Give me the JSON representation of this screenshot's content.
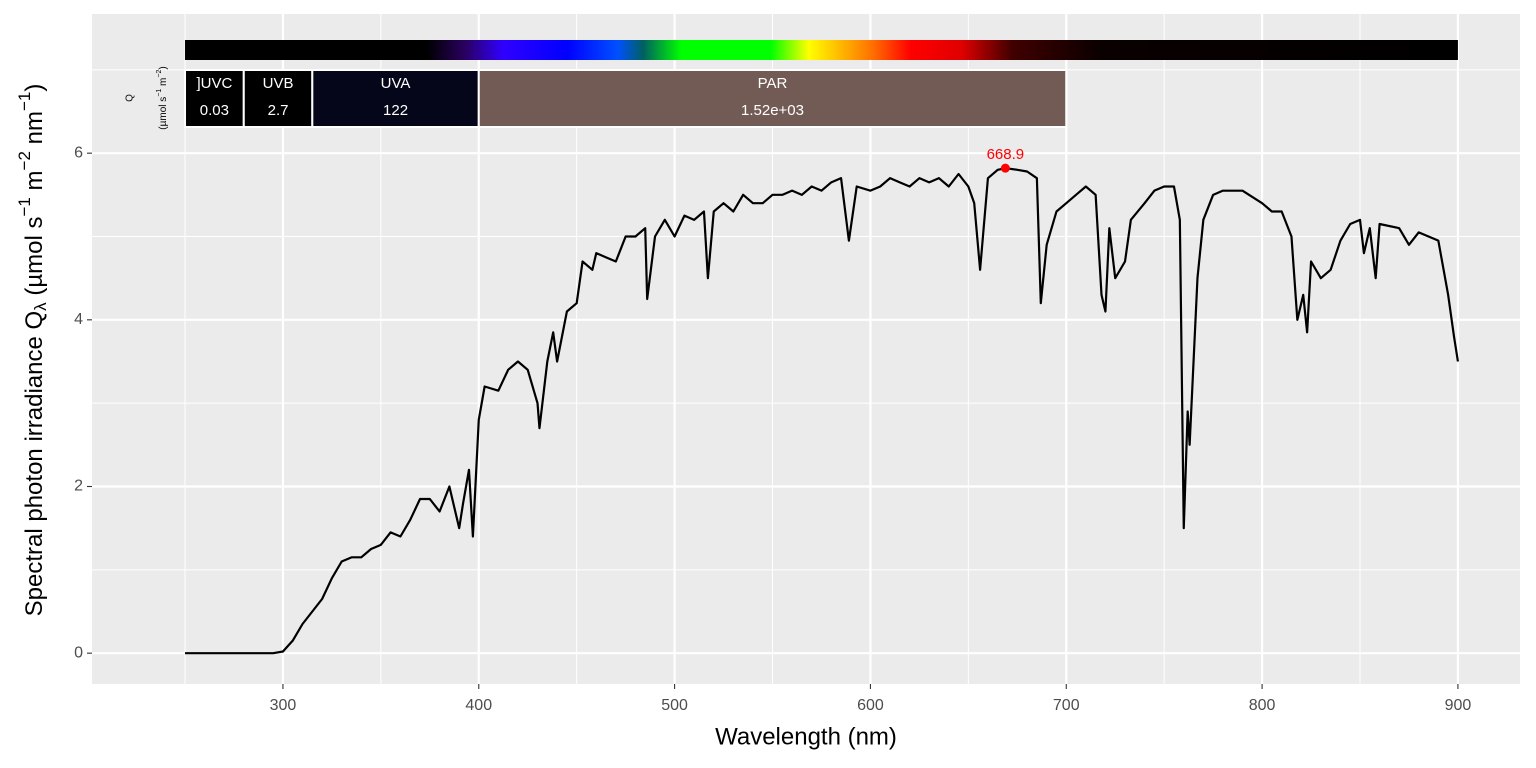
{
  "chart_data": {
    "type": "line",
    "xlabel": "Wavelength (nm)",
    "ylabel": [
      "Spectral  photon  irradiance  Q",
      "λ",
      "  (µmol s",
      "−1",
      " m",
      "−2",
      " nm",
      "−1",
      ")"
    ],
    "band_label": "Q",
    "band_unit": [
      "(µmol s",
      "−1",
      " m",
      "−2",
      ")"
    ],
    "x": [
      250,
      255,
      260,
      265,
      270,
      275,
      280,
      285,
      290,
      295,
      300,
      305,
      310,
      315,
      320,
      325,
      330,
      335,
      340,
      345,
      350,
      355,
      360,
      365,
      370,
      375,
      380,
      385,
      390,
      392,
      395,
      397,
      400,
      403,
      410,
      415,
      420,
      425,
      430,
      431,
      435,
      438,
      440,
      445,
      450,
      453,
      458,
      460,
      465,
      470,
      475,
      480,
      485,
      486,
      490,
      495,
      500,
      505,
      510,
      515,
      517,
      520,
      525,
      530,
      535,
      540,
      545,
      550,
      555,
      560,
      565,
      570,
      575,
      580,
      585,
      589,
      593,
      600,
      605,
      610,
      615,
      620,
      625,
      630,
      635,
      640,
      645,
      650,
      653,
      656,
      660,
      665,
      669,
      675,
      680,
      685,
      687,
      690,
      695,
      700,
      705,
      710,
      715,
      718,
      720,
      722,
      725,
      730,
      733,
      740,
      745,
      750,
      755,
      758,
      760,
      762,
      763,
      767,
      770,
      775,
      780,
      790,
      800,
      805,
      810,
      815,
      818,
      821,
      823,
      825,
      830,
      835,
      840,
      845,
      850,
      852,
      855,
      858,
      860,
      870,
      875,
      880,
      890,
      895,
      898,
      900
    ],
    "values": [
      0,
      0,
      0,
      0,
      0,
      0,
      0,
      0,
      0,
      0,
      0.02,
      0.15,
      0.35,
      0.5,
      0.65,
      0.9,
      1.1,
      1.15,
      1.15,
      1.25,
      1.3,
      1.45,
      1.4,
      1.6,
      1.85,
      1.85,
      1.7,
      2.0,
      1.5,
      1.8,
      2.2,
      1.4,
      2.8,
      3.2,
      3.15,
      3.4,
      3.5,
      3.4,
      3.0,
      2.7,
      3.5,
      3.85,
      3.5,
      4.1,
      4.2,
      4.7,
      4.6,
      4.8,
      4.75,
      4.7,
      5.0,
      5.0,
      5.1,
      4.25,
      5.0,
      5.2,
      5.0,
      5.25,
      5.2,
      5.3,
      4.5,
      5.3,
      5.4,
      5.3,
      5.5,
      5.4,
      5.4,
      5.5,
      5.5,
      5.55,
      5.5,
      5.6,
      5.55,
      5.65,
      5.7,
      4.95,
      5.6,
      5.55,
      5.6,
      5.7,
      5.65,
      5.6,
      5.7,
      5.65,
      5.7,
      5.6,
      5.75,
      5.6,
      5.4,
      4.6,
      5.7,
      5.8,
      5.82,
      5.8,
      5.78,
      5.7,
      4.2,
      4.9,
      5.3,
      5.4,
      5.5,
      5.6,
      5.5,
      4.3,
      4.1,
      5.1,
      4.5,
      4.7,
      5.2,
      5.4,
      5.55,
      5.6,
      5.6,
      5.2,
      1.5,
      2.9,
      2.5,
      4.5,
      5.2,
      5.5,
      5.55,
      5.55,
      5.4,
      5.3,
      5.3,
      5.0,
      4.0,
      4.3,
      3.85,
      4.7,
      4.5,
      4.6,
      4.95,
      5.15,
      5.2,
      4.8,
      5.1,
      4.5,
      5.15,
      5.1,
      4.9,
      5.05,
      4.95,
      4.3,
      3.8,
      3.5
    ],
    "color": "#000000",
    "peak": {
      "x": 668.9,
      "y": 5.82,
      "color": "#ff0000"
    },
    "bands": [
      {
        "name": "]UVC",
        "range": [
          250,
          280
        ],
        "value": 0.03,
        "value_label": "0.03",
        "color": "#000000"
      },
      {
        "name": "UVB",
        "range": [
          280,
          315
        ],
        "value": 2.7,
        "value_label": "2.7",
        "color": "#000000"
      },
      {
        "name": "UVA",
        "range": [
          315,
          400
        ],
        "value": 122,
        "value_label": "122",
        "color": "#06061a"
      },
      {
        "name": "PAR",
        "range": [
          400,
          700
        ],
        "value": 1520,
        "value_label": "1.52e+03",
        "color": "#735b55"
      }
    ],
    "spectrum_range": [
      250,
      900
    ],
    "xlim": [
      202.5,
      931.7
    ],
    "ylim": [
      -0.37,
      7.67
    ],
    "xticks": [
      300,
      400,
      500,
      600,
      700,
      800,
      900
    ],
    "xminor": [
      250,
      350,
      450,
      550,
      650,
      750,
      850
    ],
    "yticks": [
      0,
      2,
      4,
      6
    ],
    "yminor": [
      1,
      3,
      5,
      7
    ],
    "grid": true
  }
}
